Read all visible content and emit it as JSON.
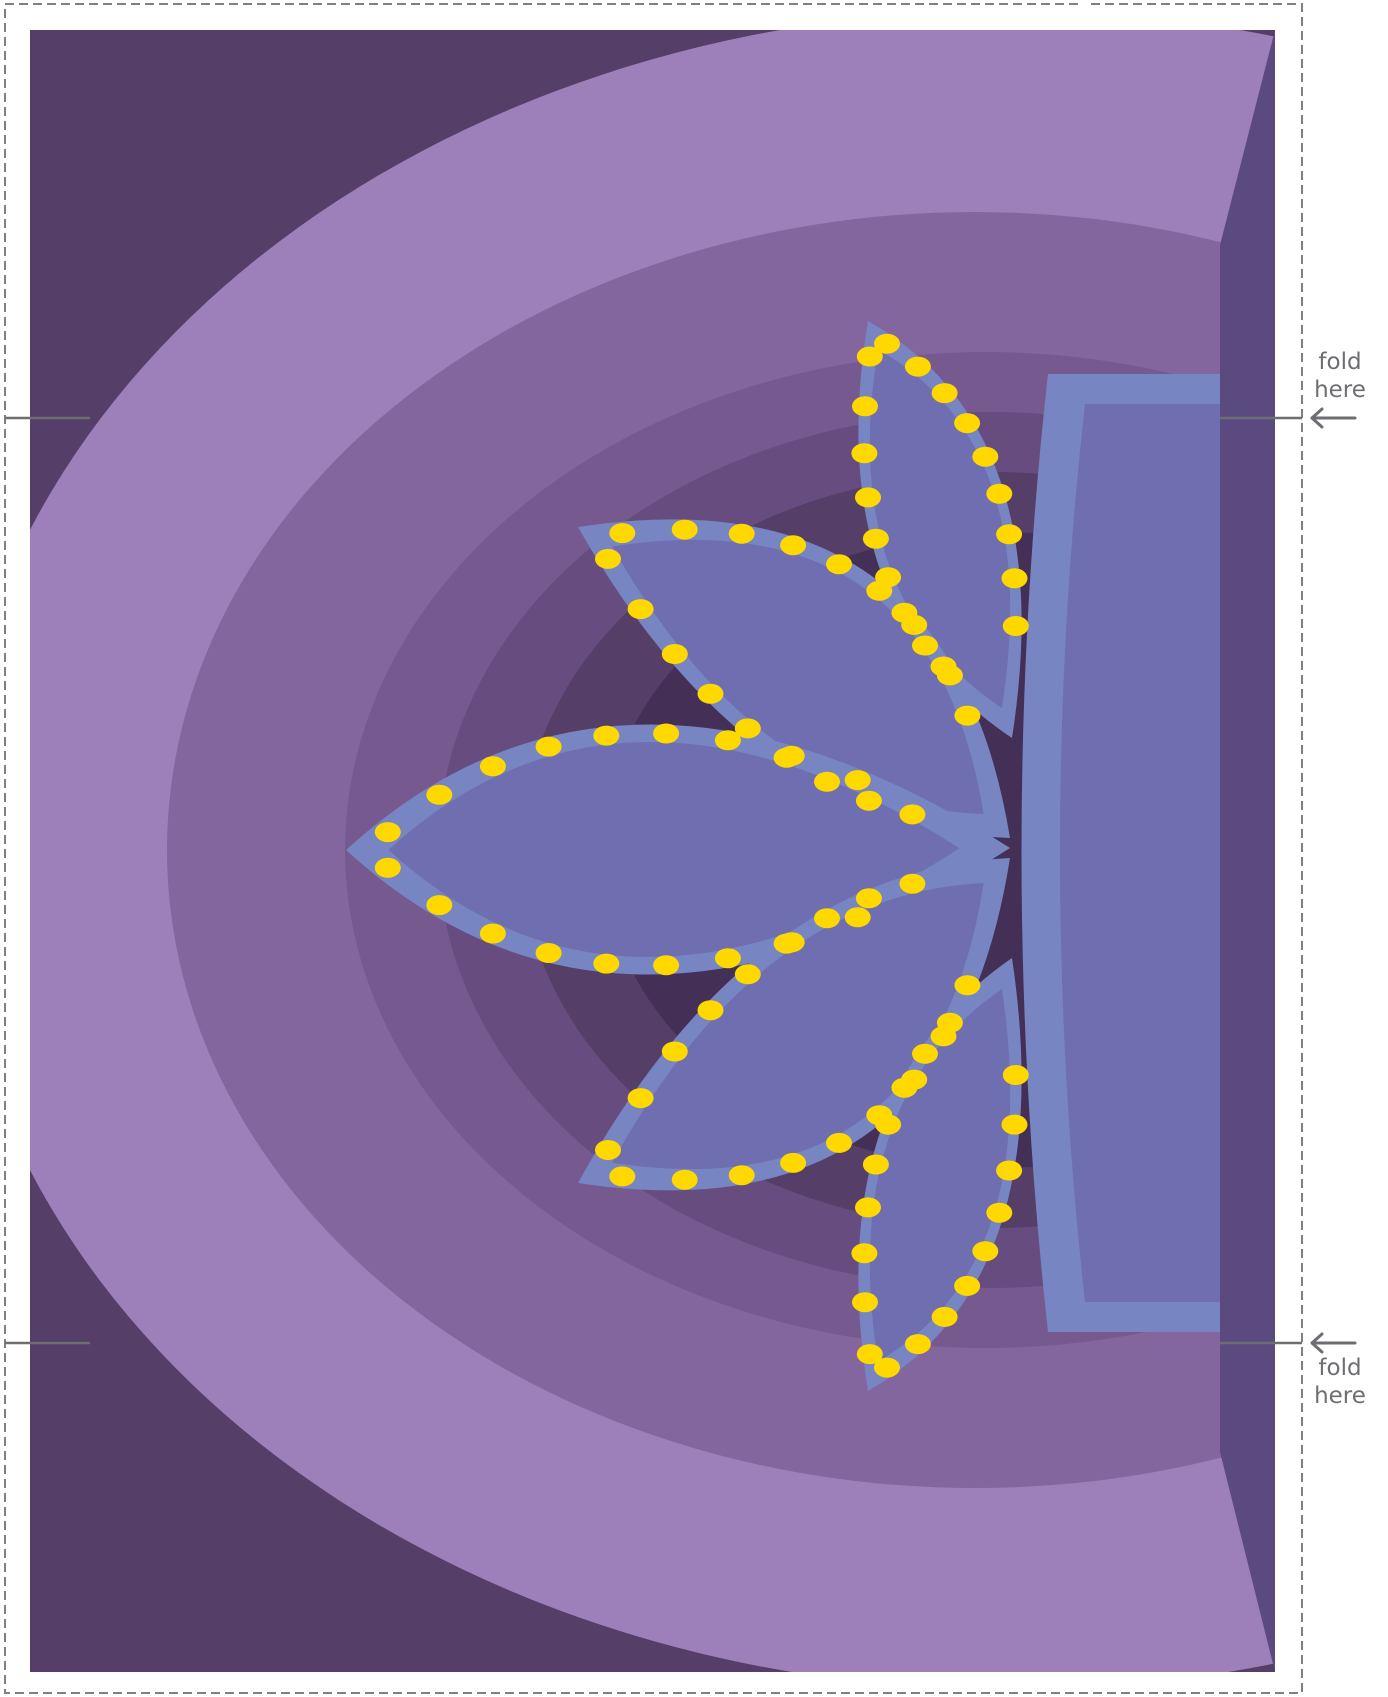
{
  "fold_marks": [
    {
      "line1": "fold",
      "line2": "here"
    },
    {
      "line1": "fold",
      "line2": "here"
    }
  ],
  "colors": {
    "corner": "#553f69",
    "band1": "#9d7fb9",
    "band2": "#84669f",
    "band3": "#765a8f",
    "band4": "#674d7f",
    "band5": "#553f69",
    "band6": "#442f57",
    "right_strip": "#5b4a80",
    "frame_outer": "#7785c2",
    "frame_inner": "#6f6eb0",
    "petal_border": "#7785c2",
    "petal_fill": "#6f6eb0",
    "bulb": "#ffd800",
    "fold_line": "#6d6e71",
    "cut_line": "#808080"
  },
  "icons": [
    "arrow-left-icon"
  ]
}
